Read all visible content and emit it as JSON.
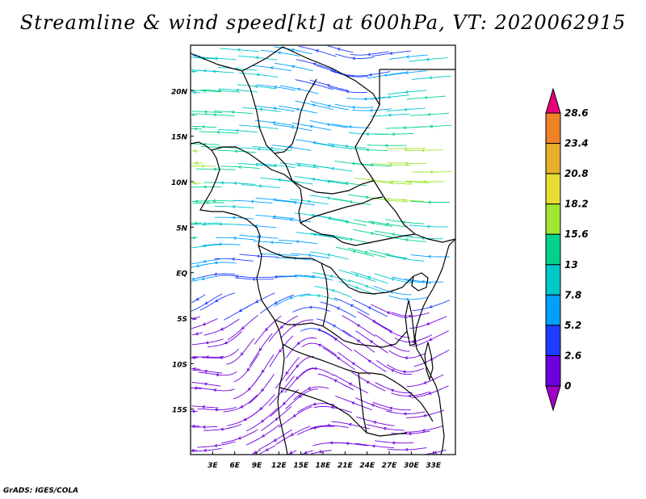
{
  "title": "Streamline & wind speed[kt] at 600hPa, VT: 2020062915",
  "footer": "GrADS: IGES/COLA",
  "map": {
    "lon_range": [
      0,
      36
    ],
    "lat_range": [
      -20,
      25
    ],
    "lat_ticks": [
      {
        "value": 20,
        "label": "20N"
      },
      {
        "value": 15,
        "label": "15N"
      },
      {
        "value": 10,
        "label": "10N"
      },
      {
        "value": 5,
        "label": "5N"
      },
      {
        "value": 0,
        "label": "EQ"
      },
      {
        "value": -5,
        "label": "5S"
      },
      {
        "value": -10,
        "label": "10S"
      },
      {
        "value": -15,
        "label": "15S"
      }
    ],
    "lon_ticks": [
      {
        "value": 3,
        "label": "3E"
      },
      {
        "value": 6,
        "label": "6E"
      },
      {
        "value": 9,
        "label": "9E"
      },
      {
        "value": 12,
        "label": "12E"
      },
      {
        "value": 15,
        "label": "15E"
      },
      {
        "value": 18,
        "label": "18E"
      },
      {
        "value": 21,
        "label": "21E"
      },
      {
        "value": 24,
        "label": "24E"
      },
      {
        "value": 27,
        "label": "27E"
      },
      {
        "value": 30,
        "label": "30E"
      },
      {
        "value": 33,
        "label": "33E"
      }
    ],
    "background_color": "#ffffff",
    "border_color": "#000000",
    "coastline_color": "#000000"
  },
  "colorbar": {
    "labels": [
      "0",
      "2.6",
      "5.2",
      "7.8",
      "13",
      "15.6",
      "18.2",
      "20.8",
      "23.4",
      "28.6"
    ],
    "colors": [
      "#a000c8",
      "#6e00dc",
      "#1e3cff",
      "#00a0ff",
      "#00c8c8",
      "#00d28c",
      "#a0e632",
      "#e6dc32",
      "#e6af2d",
      "#f08228",
      "#e6007a"
    ]
  }
}
